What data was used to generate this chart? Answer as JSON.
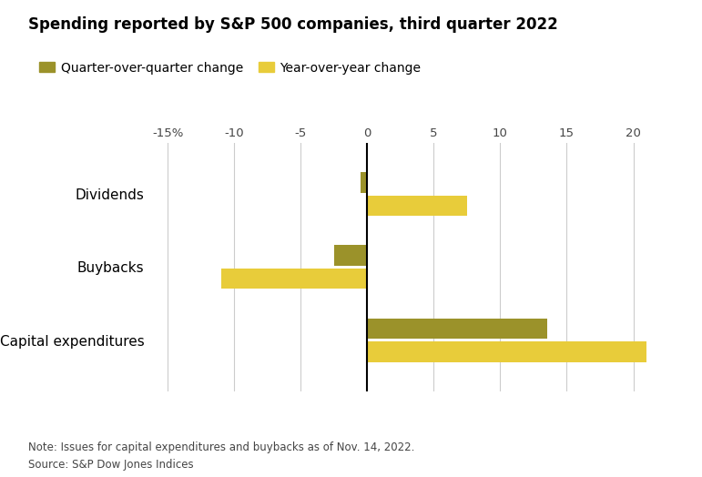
{
  "title": "Spending reported by S&P 500 companies, third quarter 2022",
  "categories": [
    "Capital expenditures",
    "Buybacks",
    "Dividends"
  ],
  "qoq_values": [
    13.5,
    -2.5,
    -0.5
  ],
  "yoy_values": [
    21.0,
    -11.0,
    7.5
  ],
  "qoq_color": "#9b922a",
  "yoy_color": "#e8cc3a",
  "xlim": [
    -16,
    22
  ],
  "xticks": [
    -15,
    -10,
    -5,
    0,
    5,
    10,
    15,
    20
  ],
  "xticklabels": [
    "-15%",
    "-10",
    "-5",
    "0",
    "5",
    "10",
    "15",
    "20"
  ],
  "legend_qoq": "Quarter-over-quarter change",
  "legend_yoy": "Year-over-year change",
  "note": "Note: Issues for capital expenditures and buybacks as of Nov. 14, 2022.",
  "source": "Source: S&P Dow Jones Indices",
  "background_color": "#ffffff",
  "bar_height": 0.28,
  "bar_gap": 0.04
}
